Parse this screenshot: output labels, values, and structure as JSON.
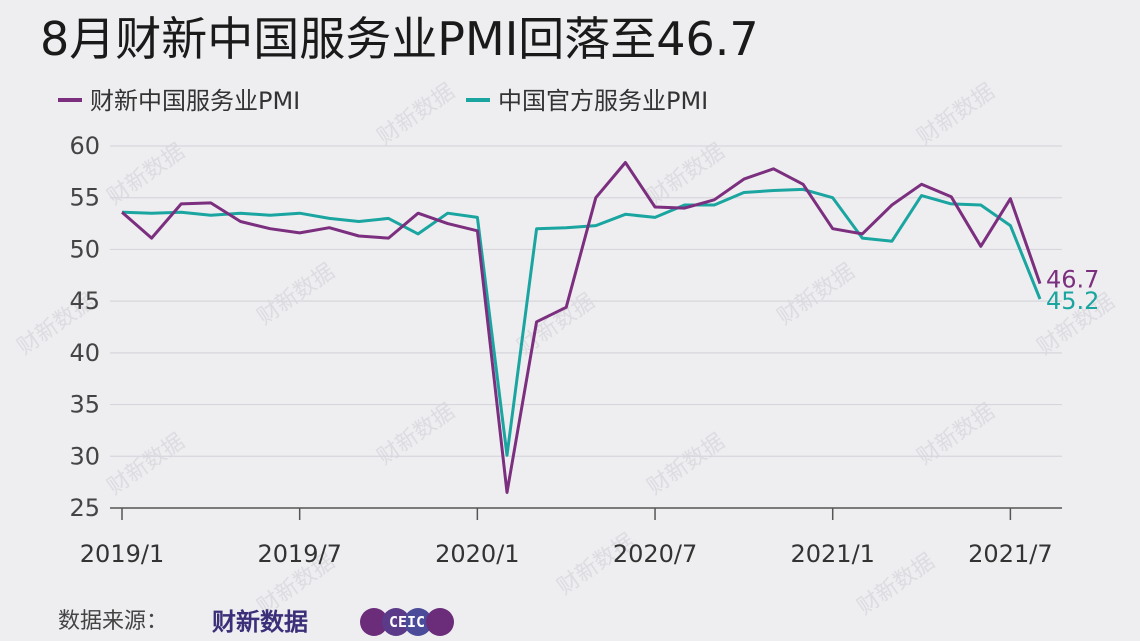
{
  "chart_data": {
    "type": "line",
    "title": "8月财新中国服务业PMI回落至46.7",
    "xlabel": "",
    "ylabel": "",
    "ylim": [
      25,
      60
    ],
    "yticks": [
      25,
      30,
      35,
      40,
      45,
      50,
      55,
      60
    ],
    "xtick_labels": [
      "2019/1",
      "2019/7",
      "2020/1",
      "2020/7",
      "2021/1",
      "2021/7"
    ],
    "grid": "horizontal",
    "legend_position": "top-left",
    "x": [
      "2019/1",
      "2019/2",
      "2019/3",
      "2019/4",
      "2019/5",
      "2019/6",
      "2019/7",
      "2019/8",
      "2019/9",
      "2019/10",
      "2019/11",
      "2019/12",
      "2020/1",
      "2020/2",
      "2020/3",
      "2020/4",
      "2020/5",
      "2020/6",
      "2020/7",
      "2020/8",
      "2020/9",
      "2020/10",
      "2020/11",
      "2020/12",
      "2021/1",
      "2021/2",
      "2021/3",
      "2021/4",
      "2021/5",
      "2021/6",
      "2021/7",
      "2021/8"
    ],
    "series": [
      {
        "name": "财新中国服务业PMI",
        "color": "#7b2f7e",
        "values": [
          53.6,
          51.1,
          54.4,
          54.5,
          52.7,
          52.0,
          51.6,
          52.1,
          51.3,
          51.1,
          53.5,
          52.5,
          51.8,
          26.5,
          43.0,
          44.4,
          55.0,
          58.4,
          54.1,
          54.0,
          54.8,
          56.8,
          57.8,
          56.3,
          52.0,
          51.5,
          54.3,
          56.3,
          55.1,
          50.3,
          54.9,
          46.7
        ],
        "end_label": "46.7"
      },
      {
        "name": "中国官方服务业PMI",
        "color": "#1aa5a0",
        "values": [
          53.6,
          53.5,
          53.6,
          53.3,
          53.5,
          53.3,
          53.5,
          53.0,
          52.7,
          53.0,
          51.5,
          53.5,
          53.1,
          30.1,
          52.0,
          52.1,
          52.3,
          53.4,
          53.1,
          54.3,
          54.3,
          55.5,
          55.7,
          55.8,
          55.0,
          51.1,
          50.8,
          55.2,
          54.4,
          54.3,
          52.3,
          45.2
        ],
        "end_label": "45.2"
      }
    ]
  },
  "footer": {
    "source_label": "数据来源：",
    "logo_caixin": "财新数据",
    "logo_ceic": "CEIC"
  },
  "watermark": "财新数据"
}
